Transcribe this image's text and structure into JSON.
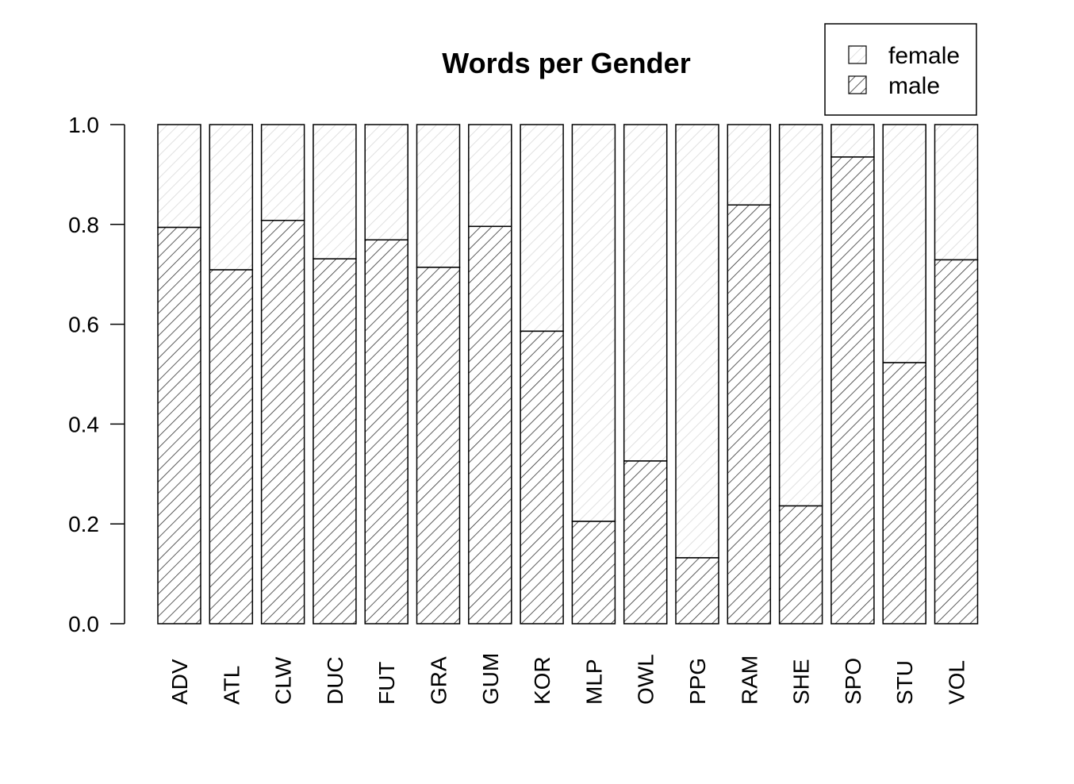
{
  "chart_data": {
    "type": "bar",
    "stacked": true,
    "title": "Words per Gender",
    "xlabel": "",
    "ylabel": "",
    "ylim": [
      0,
      1
    ],
    "yticks": [
      "0.0",
      "0.2",
      "0.4",
      "0.6",
      "0.8",
      "1.0"
    ],
    "grid": false,
    "legend_position": "top-right",
    "categories": [
      "ADV",
      "ATL",
      "CLW",
      "DUC",
      "FUT",
      "GRA",
      "GUM",
      "KOR",
      "MLP",
      "OWL",
      "PPG",
      "RAM",
      "SHE",
      "SPO",
      "STU",
      "VOL"
    ],
    "series": [
      {
        "name": "male",
        "values": [
          0.794,
          0.709,
          0.808,
          0.731,
          0.769,
          0.714,
          0.796,
          0.586,
          0.205,
          0.326,
          0.132,
          0.839,
          0.236,
          0.935,
          0.523,
          0.729
        ]
      },
      {
        "name": "female",
        "values": [
          0.206,
          0.291,
          0.192,
          0.269,
          0.231,
          0.286,
          0.204,
          0.414,
          0.795,
          0.674,
          0.868,
          0.161,
          0.764,
          0.065,
          0.477,
          0.271
        ]
      }
    ],
    "legend": [
      "female",
      "male"
    ],
    "colors": {
      "female_hatch": "#d9d9d9",
      "male_hatch": "#333333",
      "outline": "#000000"
    }
  }
}
